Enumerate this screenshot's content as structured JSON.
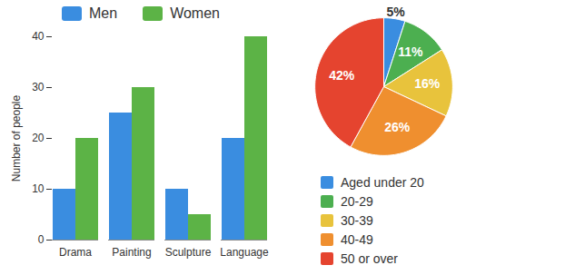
{
  "chart_data": [
    {
      "type": "bar",
      "categories": [
        "Drama",
        "Painting",
        "Sculpture",
        "Language"
      ],
      "series": [
        {
          "name": "Men",
          "color": "#3a8de0",
          "values": [
            10,
            25,
            10,
            20
          ]
        },
        {
          "name": "Women",
          "color": "#5cb346",
          "values": [
            20,
            30,
            5,
            40
          ]
        }
      ],
      "ylabel": "Number of people",
      "ylim": [
        0,
        40
      ],
      "yticks": [
        0,
        10,
        20,
        30,
        40
      ],
      "legend": "top"
    },
    {
      "type": "pie",
      "categories": [
        "Aged under 20",
        "20-29",
        "30-39",
        "40-49",
        "50 or over"
      ],
      "values": [
        5,
        11,
        16,
        26,
        42
      ],
      "value_labels": [
        "5%",
        "11%",
        "16%",
        "26%",
        "42%"
      ],
      "colors": [
        "#3a8de0",
        "#4caf50",
        "#e8c33c",
        "#ef8f2f",
        "#e5442f"
      ],
      "data_labels": true,
      "legend": "bottom"
    }
  ]
}
